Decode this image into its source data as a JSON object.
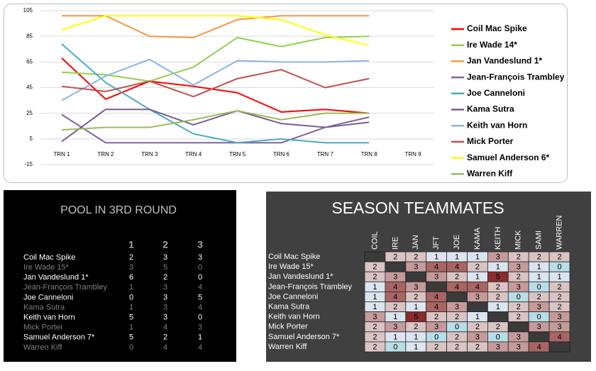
{
  "chart_data": {
    "type": "line",
    "categories": [
      "TRN 1",
      "TRN 2",
      "TRN 3",
      "TRN 4",
      "TRN 5",
      "TRN 6",
      "TRN 7",
      "TRN 8",
      "TRN 9"
    ],
    "ylim": [
      -15,
      105
    ],
    "yticks": [
      -15,
      5,
      25,
      45,
      65,
      85,
      105
    ],
    "grid": true,
    "legend": "right",
    "series": [
      {
        "name": "Coil Mac Spike",
        "color": "#ff0000",
        "values": [
          68,
          36,
          50,
          46,
          41,
          26,
          28,
          25,
          null
        ]
      },
      {
        "name": "Ire Wade 14*",
        "color": "#92d050",
        "values": [
          57,
          55,
          50,
          61,
          84,
          77,
          84,
          85,
          null
        ]
      },
      {
        "name": "Jan Vandeslund 1*",
        "color": "#f79646",
        "values": [
          101,
          101,
          85,
          84,
          98,
          101,
          101,
          101,
          null
        ]
      },
      {
        "name": "Jean-François Trambley",
        "color": "#8064a2",
        "values": [
          24,
          2,
          2,
          2,
          2,
          2,
          14,
          22,
          null
        ]
      },
      {
        "name": "Joe Canneloni",
        "color": "#4bacc6",
        "values": [
          79,
          49,
          28,
          9,
          2,
          5,
          2,
          2,
          null
        ]
      },
      {
        "name": "Kama Sutra",
        "color": "#7a5c94",
        "values": [
          3,
          28,
          28,
          16,
          27,
          17,
          14,
          18,
          null
        ]
      },
      {
        "name": "Keith van Horn",
        "color": "#8eb4e3",
        "values": [
          35,
          54,
          67,
          47,
          66,
          65,
          65,
          66,
          null
        ]
      },
      {
        "name": "Mick Porter",
        "color": "#c0504d",
        "values": [
          46,
          42,
          50,
          38,
          52,
          59,
          45,
          52,
          null
        ]
      },
      {
        "name": "Samuel Anderson 6*",
        "color": "#ffff00",
        "values": [
          90,
          101,
          101,
          101,
          101,
          98,
          86,
          78,
          null
        ]
      },
      {
        "name": "Warren Kiff",
        "color": "#9bbb59",
        "values": [
          12,
          14,
          14,
          20,
          27,
          20,
          25,
          25,
          null
        ]
      }
    ]
  },
  "pool": {
    "title": "POOL IN 3RD ROUND",
    "columns": [
      "1",
      "2",
      "3"
    ],
    "rows": [
      {
        "name": "Coil Mac Spike",
        "values": [
          2,
          3,
          3
        ]
      },
      {
        "name": "Ire Wade 15*",
        "values": [
          3,
          5,
          0
        ]
      },
      {
        "name": "Jan Vandeslund 1*",
        "values": [
          6,
          2,
          0
        ]
      },
      {
        "name": "Jean-François Trambley",
        "values": [
          1,
          3,
          4
        ]
      },
      {
        "name": "Joe Canneloni",
        "values": [
          0,
          3,
          5
        ]
      },
      {
        "name": "Kama Sutra",
        "values": [
          1,
          3,
          4
        ]
      },
      {
        "name": "Keith van Horn",
        "values": [
          5,
          3,
          0
        ]
      },
      {
        "name": "Mick Porter",
        "values": [
          1,
          4,
          3
        ]
      },
      {
        "name": "Samuel Anderson 7*",
        "values": [
          5,
          2,
          1
        ]
      },
      {
        "name": "Warren Kiff",
        "values": [
          0,
          4,
          4
        ]
      }
    ]
  },
  "teammates": {
    "title": "SEASON TEAMMATES",
    "columns": [
      "COIL",
      "IRE",
      "JAN",
      "JFT",
      "JOE",
      "KAMA",
      "KEITH",
      "MICK",
      "SAMI",
      "WARREN"
    ],
    "rows": [
      {
        "name": "Coil Mac Spike",
        "values": [
          null,
          2,
          2,
          1,
          1,
          1,
          3,
          2,
          2,
          2
        ]
      },
      {
        "name": "Ire Wade 15*",
        "values": [
          2,
          null,
          3,
          4,
          4,
          2,
          1,
          3,
          1,
          0
        ]
      },
      {
        "name": "Jan Vandeslund 1*",
        "values": [
          2,
          3,
          null,
          3,
          2,
          1,
          5,
          2,
          1,
          1
        ]
      },
      {
        "name": "Jean-François Trambley",
        "values": [
          1,
          4,
          3,
          null,
          4,
          4,
          2,
          3,
          0,
          2
        ]
      },
      {
        "name": "Joe Canneloni",
        "values": [
          1,
          4,
          2,
          4,
          null,
          3,
          2,
          0,
          2,
          2
        ]
      },
      {
        "name": "Kama Sutra",
        "values": [
          1,
          2,
          1,
          4,
          3,
          null,
          1,
          2,
          3,
          2
        ]
      },
      {
        "name": "Keith van Horn",
        "values": [
          3,
          1,
          5,
          2,
          2,
          1,
          null,
          2,
          0,
          3
        ]
      },
      {
        "name": "Mick Porter",
        "values": [
          2,
          3,
          2,
          3,
          0,
          2,
          2,
          null,
          3,
          3
        ]
      },
      {
        "name": "Samuel Anderson 7*",
        "values": [
          2,
          1,
          1,
          0,
          2,
          3,
          0,
          3,
          null,
          4
        ]
      },
      {
        "name": "Warren Kiff",
        "values": [
          2,
          0,
          1,
          2,
          2,
          2,
          3,
          3,
          4,
          null
        ]
      }
    ]
  }
}
